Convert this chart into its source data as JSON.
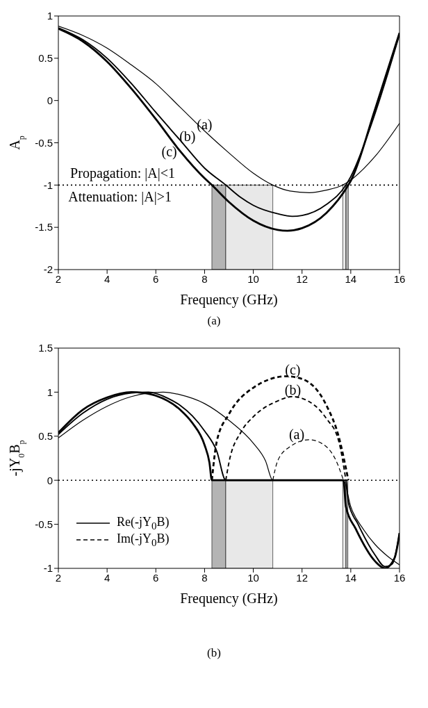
{
  "chart_data": [
    {
      "type": "line",
      "title": "(a)",
      "xlabel": "Frequency (GHz)",
      "ylabel": "A$_{p}$",
      "xlim": [
        2,
        16
      ],
      "xticks": [
        2,
        4,
        6,
        8,
        10,
        12,
        14,
        16
      ],
      "ylim": [
        -2,
        1
      ],
      "yticks": [
        -2,
        -1.5,
        -1,
        -0.5,
        0,
        0.5,
        1
      ],
      "grid": false,
      "legend": false,
      "marker": "none",
      "series": [
        {
          "color": "#000000",
          "line_style": "solid",
          "x": [
            2,
            3,
            4,
            5,
            6,
            7,
            8,
            9,
            10,
            10.8,
            11.5,
            12.3,
            13,
            13.67,
            14,
            15,
            16
          ],
          "values": [
            0.88,
            0.77,
            0.62,
            0.42,
            0.2,
            -0.08,
            -0.36,
            -0.62,
            -0.86,
            -1.0,
            -1.07,
            -1.09,
            -1.06,
            -1.0,
            -0.94,
            -0.66,
            -0.27
          ]
        },
        {
          "color": "#000000",
          "line_style": "solid",
          "x": [
            2,
            3,
            4,
            5,
            6,
            7,
            8,
            8.87,
            9.5,
            10,
            11,
            11.6,
            12,
            13,
            13.8,
            14,
            15,
            16
          ],
          "values": [
            0.86,
            0.72,
            0.5,
            0.2,
            -0.14,
            -0.47,
            -0.8,
            -1.0,
            -1.15,
            -1.24,
            -1.34,
            -1.37,
            -1.36,
            -1.23,
            -1.0,
            -0.9,
            -0.15,
            0.78
          ]
        },
        {
          "color": "#000000",
          "line_style": "solid",
          "x": [
            2,
            3,
            4,
            5,
            6,
            7,
            8,
            8.3,
            9,
            10,
            11,
            11.4,
            12,
            13,
            13.9,
            14,
            15,
            16
          ],
          "values": [
            0.85,
            0.7,
            0.46,
            0.14,
            -0.22,
            -0.6,
            -0.92,
            -1.0,
            -1.2,
            -1.42,
            -1.53,
            -1.54,
            -1.51,
            -1.33,
            -1.0,
            -0.95,
            -0.1,
            0.8
          ]
        }
      ],
      "ref_lines": [
        {
          "axis": "y",
          "value": -1,
          "line_style": "dotted",
          "color": "#000000"
        }
      ],
      "bands": [
        {
          "axis": "x",
          "from": 8.3,
          "to": 8.87,
          "color": "#b4b4b4"
        },
        {
          "axis": "x",
          "from": 8.87,
          "to": 10.8,
          "color": "#e8e8e8"
        },
        {
          "axis": "x",
          "from": 13.67,
          "to": 13.8,
          "color": "#e8e8e8"
        },
        {
          "axis": "x",
          "from": 13.8,
          "to": 13.9,
          "color": "#b4b4b4"
        }
      ],
      "annotations": [
        "(a)",
        "(b)",
        "(c)",
        "Propagation: |A|<1",
        "Attenuation: |A|>1"
      ]
    },
    {
      "type": "line",
      "title": "(b)",
      "xlabel": "Frequency (GHz)",
      "ylabel": "-jY$_{0}$B$_{p}$",
      "xlim": [
        2,
        16
      ],
      "xticks": [
        2,
        4,
        6,
        8,
        10,
        12,
        14,
        16
      ],
      "ylim": [
        -1,
        1.5
      ],
      "yticks": [
        -1,
        -0.5,
        0,
        0.5,
        1,
        1.5
      ],
      "grid": false,
      "legend": "bottom left",
      "marker": "none",
      "series": [
        {
          "name": "Re(-jY$_{0}$B)",
          "color": "#000000",
          "line_style": "solid",
          "x": [
            2,
            3,
            4,
            5,
            6.3,
            7,
            8,
            9,
            10,
            10.5,
            10.8,
            13.7,
            14,
            14.5,
            15,
            15.5,
            16
          ],
          "values": [
            0.48,
            0.68,
            0.84,
            0.95,
            1.0,
            0.97,
            0.87,
            0.68,
            0.42,
            0.22,
            0,
            0,
            -0.3,
            -0.55,
            -0.73,
            -0.86,
            -0.96
          ]
        },
        {
          "color": "#000000",
          "line_style": "solid",
          "x": [
            2,
            3,
            4,
            5,
            5.7,
            6.5,
            7,
            7.5,
            8,
            8.5,
            8.87,
            13.8,
            13.9,
            14.3,
            15,
            15.4,
            15.7,
            16
          ],
          "values": [
            0.52,
            0.76,
            0.92,
            0.99,
            1.0,
            0.93,
            0.85,
            0.73,
            0.56,
            0.33,
            0,
            0,
            -0.25,
            -0.5,
            -0.85,
            -0.98,
            -0.95,
            -0.6
          ]
        },
        {
          "color": "#000000",
          "line_style": "solid",
          "x": [
            2,
            3,
            4,
            5,
            5.5,
            6,
            7,
            7.5,
            8,
            8.2,
            8.3,
            13.7,
            13.8,
            14.2,
            15,
            15.4,
            15.8,
            16
          ],
          "values": [
            0.54,
            0.8,
            0.94,
            1.0,
            0.99,
            0.96,
            0.8,
            0.65,
            0.4,
            0.2,
            0,
            0,
            -0.3,
            -0.55,
            -0.92,
            -1.0,
            -0.88,
            -0.6
          ]
        },
        {
          "name": "Im(-jY$_{0}$B)",
          "color": "#000000",
          "line_style": "dashed",
          "x": [
            10.8,
            11,
            11.5,
            12.3,
            13,
            13.4,
            13.7
          ],
          "values": [
            0,
            0.22,
            0.38,
            0.46,
            0.38,
            0.22,
            0
          ]
        },
        {
          "color": "#000000",
          "line_style": "dashed",
          "x": [
            8.87,
            9,
            9.5,
            10,
            11,
            11.6,
            12,
            13,
            13.5,
            13.8
          ],
          "values": [
            0,
            0.2,
            0.55,
            0.72,
            0.9,
            0.95,
            0.93,
            0.7,
            0.45,
            0
          ]
        },
        {
          "color": "#000000",
          "line_style": "dashed",
          "x": [
            8.3,
            8.5,
            9,
            10,
            11.37,
            12,
            13,
            13.5,
            13.9
          ],
          "values": [
            0,
            0.44,
            0.75,
            1.05,
            1.18,
            1.15,
            0.85,
            0.5,
            0
          ]
        }
      ],
      "ref_lines": [
        {
          "axis": "y",
          "value": 0,
          "line_style": "dotted",
          "color": "#000000"
        }
      ],
      "bands": [
        {
          "axis": "x",
          "from": 8.3,
          "to": 8.87,
          "color": "#b4b4b4"
        },
        {
          "axis": "x",
          "from": 8.87,
          "to": 10.8,
          "color": "#e8e8e8"
        },
        {
          "axis": "x",
          "from": 13.67,
          "to": 13.8,
          "color": "#e8e8e8"
        },
        {
          "axis": "x",
          "from": 13.8,
          "to": 13.88,
          "color": "#b4b4b4"
        }
      ],
      "annotations": [
        "(c)",
        "(b)",
        "(a)"
      ]
    }
  ]
}
